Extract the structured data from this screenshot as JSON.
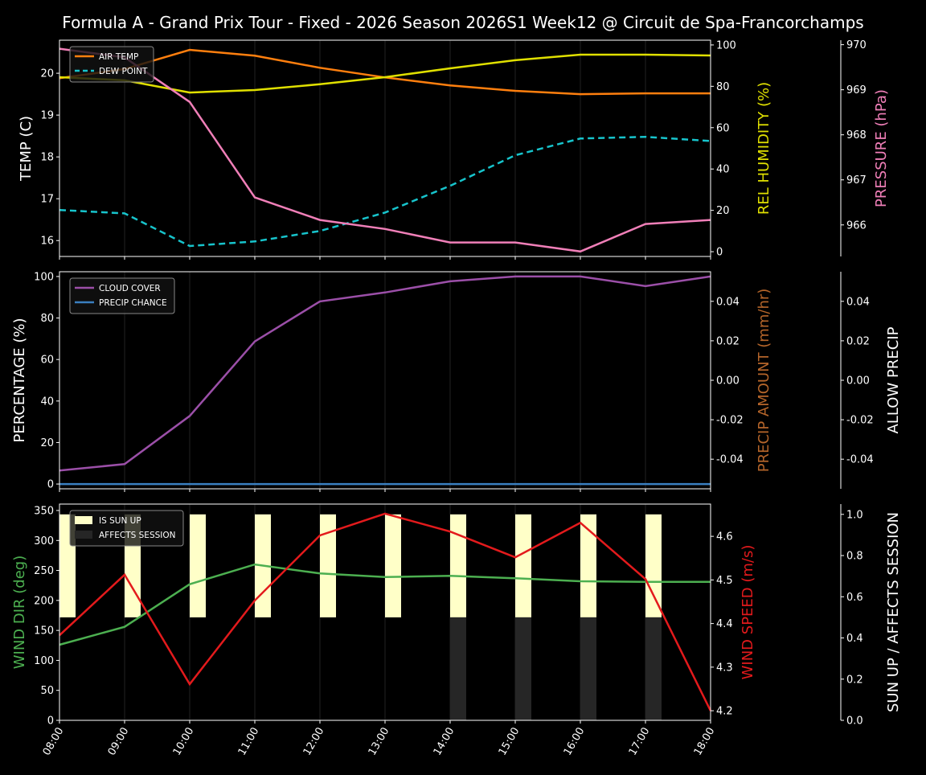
{
  "title": "Formula A - Grand Prix Tour - Fixed - 2026 Season  2026S1 Week12 @ Circuit de Spa-Francorchamps",
  "chart_data": [
    {
      "type": "line",
      "x": [
        "08:00",
        "09:00",
        "10:00",
        "11:00",
        "12:00",
        "13:00",
        "14:00",
        "15:00",
        "16:00",
        "17:00",
        "18:00"
      ],
      "ylabel": "TEMP (C)",
      "ylim": [
        15.62,
        20.79
      ],
      "yticks": [
        16,
        17,
        18,
        19,
        20
      ],
      "y2label": "REL HUMIDITY (%)",
      "y2lim": [
        -2.3,
        102.3
      ],
      "y2ticks": [
        0,
        20,
        40,
        60,
        80,
        100
      ],
      "y3label": "PRESSURE (hPa)",
      "y3lim": [
        965.3,
        970.1
      ],
      "y3ticks": [
        966,
        967,
        968,
        969,
        970
      ],
      "legend": "top-left",
      "series": [
        {
          "name": "AIR TEMP",
          "axis": "y",
          "color": "#ff7f0e",
          "dash": false,
          "values": [
            19.88,
            20.1,
            20.56,
            20.42,
            20.13,
            19.9,
            19.71,
            19.58,
            19.5,
            19.52,
            19.52
          ]
        },
        {
          "name": "DEW POINT",
          "axis": "y",
          "color": "#17c4cc",
          "dash": true,
          "values": [
            16.73,
            16.65,
            15.87,
            15.98,
            16.23,
            16.67,
            17.31,
            18.04,
            18.44,
            18.48,
            18.38
          ]
        },
        {
          "axis": "y2",
          "color": "#e0e000",
          "dash": false,
          "values": [
            84.4,
            82.9,
            77,
            78.2,
            81,
            84.4,
            88.7,
            92.6,
            95.3,
            95.3,
            94.9
          ]
        },
        {
          "axis": "y3",
          "color": "#f07fb8",
          "dash": false,
          "values": [
            969.91,
            969.72,
            968.73,
            966.61,
            966.11,
            965.91,
            965.61,
            965.61,
            965.41,
            966.02,
            966.11
          ]
        }
      ]
    },
    {
      "type": "line",
      "x": [
        "08:00",
        "09:00",
        "10:00",
        "11:00",
        "12:00",
        "13:00",
        "14:00",
        "15:00",
        "16:00",
        "17:00",
        "18:00"
      ],
      "ylabel": "PERCENTAGE (%)",
      "ylim": [
        -2.3,
        102.3
      ],
      "yticks": [
        0,
        20,
        40,
        60,
        80,
        100
      ],
      "y2label": "PRECIP AMOUNT (mm/hr)",
      "y2lim": [
        -0.055,
        0.055
      ],
      "y2ticks": [
        "-0.04",
        "-0.02",
        "0.00",
        "0.02",
        "0.04"
      ],
      "y3label": "ALLOW PRECIP",
      "y3lim": [
        -0.055,
        0.055
      ],
      "y3ticks": [
        "-0.04",
        "-0.02",
        "0.00",
        "0.02",
        "0.04"
      ],
      "legend": "top-left",
      "series": [
        {
          "name": "CLOUD COVER",
          "axis": "y",
          "color": "#9b4fa8",
          "dash": false,
          "values": [
            6.5,
            9.6,
            32.8,
            68.7,
            88,
            92.3,
            97.7,
            100,
            100,
            95.4,
            100
          ]
        },
        {
          "name": "PRECIP CHANCE",
          "axis": "y",
          "color": "#3a7fc0",
          "dash": false,
          "values": [
            0,
            0,
            0,
            0,
            0,
            0,
            0,
            0,
            0,
            0,
            0
          ]
        }
      ]
    },
    {
      "type": "line",
      "x": [
        "08:00",
        "09:00",
        "10:00",
        "11:00",
        "12:00",
        "13:00",
        "14:00",
        "15:00",
        "16:00",
        "17:00",
        "18:00"
      ],
      "ylabel": "WIND DIR (deg)",
      "ylim": [
        0,
        360.7
      ],
      "yticks": [
        0,
        50,
        100,
        150,
        200,
        250,
        300,
        350
      ],
      "y2label": "WIND SPEED (m/s)",
      "y2lim": [
        4.178,
        4.674
      ],
      "y2ticks": [
        "4.2",
        "4.3",
        "4.4",
        "4.5",
        "4.6"
      ],
      "y3label": "SUN UP / AFFECTS SESSION",
      "y3lim": [
        0,
        1.05
      ],
      "y3ticks": [
        "0.0",
        "0.2",
        "0.4",
        "0.6",
        "0.8",
        "1.0"
      ],
      "legend": "top-left",
      "bars": [
        {
          "name": "IS SUN UP",
          "color": "#ffffc8",
          "values": [
            1,
            1,
            1,
            1,
            1,
            1,
            1,
            1,
            1,
            1
          ]
        },
        {
          "name": "AFFECTS SESSION",
          "color": "#262626",
          "values": [
            0,
            0,
            0,
            0,
            0,
            0,
            1,
            1,
            1,
            1
          ]
        }
      ],
      "series": [
        {
          "axis": "y",
          "color": "#4caf50",
          "dash": false,
          "values": [
            126,
            156,
            227,
            260,
            245,
            239,
            241,
            237,
            232,
            231,
            231
          ]
        },
        {
          "axis": "y2",
          "color": "#e31a1c",
          "dash": false,
          "values": [
            4.373,
            4.512,
            4.261,
            4.453,
            4.602,
            4.652,
            4.611,
            4.552,
            4.631,
            4.502,
            4.2
          ]
        }
      ]
    }
  ]
}
